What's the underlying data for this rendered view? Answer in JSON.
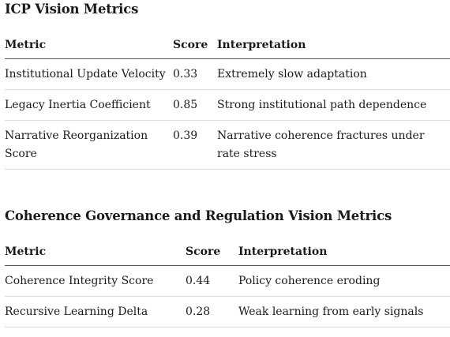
{
  "sections": [
    {
      "title": "ICP Vision Metrics",
      "headers": [
        "Metric",
        "Score",
        "Interpretation"
      ],
      "rows": [
        {
          "metric": "Institutional Update Velocity",
          "score": "0.33",
          "interpretation": "Extremely slow adaptation"
        },
        {
          "metric": "Legacy Inertia Coefficient",
          "score": "0.85",
          "interpretation": "Strong institutional path dependence"
        },
        {
          "metric": "Narrative Reorganization Score",
          "score": "0.39",
          "interpretation": "Narrative coherence fractures under rate stress"
        }
      ]
    },
    {
      "title": "Coherence Governance and Regulation Vision Metrics",
      "headers": [
        "Metric",
        "Score",
        "Interpretation"
      ],
      "rows": [
        {
          "metric": "Coherence Integrity Score",
          "score": "0.44",
          "interpretation": "Policy coherence eroding"
        },
        {
          "metric": "Recursive Learning Delta",
          "score": "0.28",
          "interpretation": "Weak learning from early signals"
        }
      ]
    }
  ]
}
